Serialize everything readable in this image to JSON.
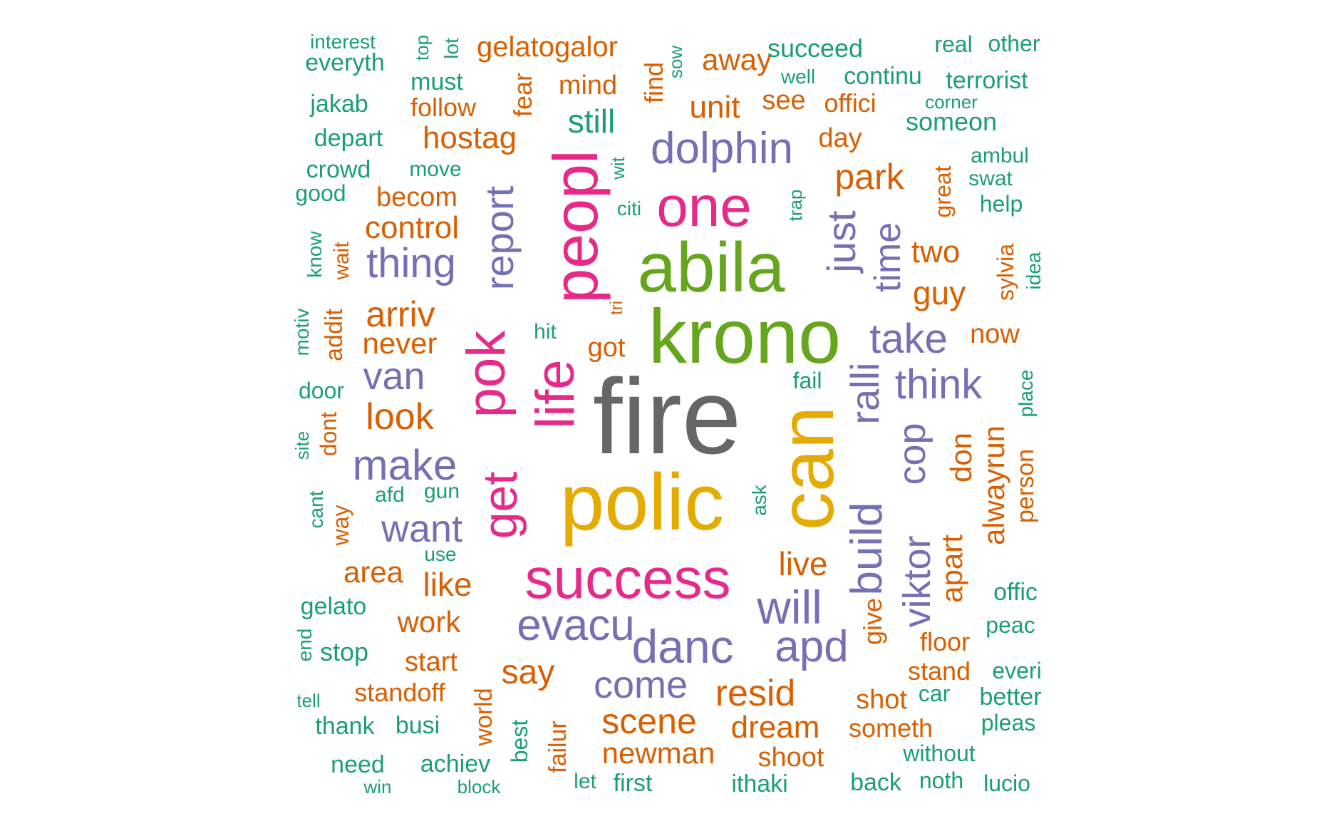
{
  "colors": {
    "teal": "#1b9e77",
    "orange": "#d95f02",
    "purple": "#7570b3",
    "pink": "#e7298a",
    "green": "#66a61e",
    "gold": "#e6ab02",
    "gray": "#666666"
  },
  "words": [
    {
      "text": "fire",
      "color": "gray",
      "weight": 10
    },
    {
      "text": "polic",
      "color": "gold",
      "weight": 8
    },
    {
      "text": "can",
      "color": "gold",
      "weight": 8
    },
    {
      "text": "krono",
      "color": "green",
      "weight": 8
    },
    {
      "text": "abila",
      "color": "green",
      "weight": 7
    },
    {
      "text": "peopl",
      "color": "pink",
      "weight": 6
    },
    {
      "text": "life",
      "color": "pink",
      "weight": 6
    },
    {
      "text": "pok",
      "color": "pink",
      "weight": 6
    },
    {
      "text": "success",
      "color": "pink",
      "weight": 6
    },
    {
      "text": "one",
      "color": "pink",
      "weight": 6
    },
    {
      "text": "get",
      "color": "pink",
      "weight": 5
    },
    {
      "text": "dolphin",
      "color": "purple",
      "weight": 5
    },
    {
      "text": "report",
      "color": "purple",
      "weight": 5
    },
    {
      "text": "danc",
      "color": "purple",
      "weight": 5
    },
    {
      "text": "build",
      "color": "purple",
      "weight": 5
    },
    {
      "text": "evacu",
      "color": "purple",
      "weight": 5
    },
    {
      "text": "apd",
      "color": "purple",
      "weight": 5
    },
    {
      "text": "will",
      "color": "purple",
      "weight": 5
    },
    {
      "text": "make",
      "color": "purple",
      "weight": 5
    },
    {
      "text": "ralli",
      "color": "purple",
      "weight": 4
    },
    {
      "text": "take",
      "color": "purple",
      "weight": 4
    },
    {
      "text": "think",
      "color": "purple",
      "weight": 4
    },
    {
      "text": "thing",
      "color": "purple",
      "weight": 4
    },
    {
      "text": "just",
      "color": "purple",
      "weight": 4
    },
    {
      "text": "cop",
      "color": "purple",
      "weight": 4
    },
    {
      "text": "come",
      "color": "purple",
      "weight": 4
    },
    {
      "text": "van",
      "color": "purple",
      "weight": 4
    },
    {
      "text": "want",
      "color": "purple",
      "weight": 4
    },
    {
      "text": "viktor",
      "color": "purple",
      "weight": 4
    },
    {
      "text": "time",
      "color": "purple",
      "weight": 4
    },
    {
      "text": "resid",
      "color": "orange",
      "weight": 4
    },
    {
      "text": "scene",
      "color": "orange",
      "weight": 4
    },
    {
      "text": "park",
      "color": "orange",
      "weight": 4
    },
    {
      "text": "arriv",
      "color": "orange",
      "weight": 4
    },
    {
      "text": "hostag",
      "color": "orange",
      "weight": 3
    },
    {
      "text": "look",
      "color": "orange",
      "weight": 4
    },
    {
      "text": "say",
      "color": "orange",
      "weight": 4
    },
    {
      "text": "like",
      "color": "orange",
      "weight": 3
    },
    {
      "text": "live",
      "color": "orange",
      "weight": 3
    },
    {
      "text": "two",
      "color": "orange",
      "weight": 3
    },
    {
      "text": "guy",
      "color": "orange",
      "weight": 3
    },
    {
      "text": "unit",
      "color": "orange",
      "weight": 3
    },
    {
      "text": "dream",
      "color": "orange",
      "weight": 3
    },
    {
      "text": "control",
      "color": "orange",
      "weight": 3
    },
    {
      "text": "gelatogalor",
      "color": "orange",
      "weight": 3
    },
    {
      "text": "newman",
      "color": "orange",
      "weight": 3
    },
    {
      "text": "away",
      "color": "orange",
      "weight": 3
    },
    {
      "text": "don",
      "color": "orange",
      "weight": 3
    },
    {
      "text": "apart",
      "color": "orange",
      "weight": 3
    },
    {
      "text": "alwayrun",
      "color": "orange",
      "weight": 3
    },
    {
      "text": "never",
      "color": "orange",
      "weight": 3
    },
    {
      "text": "work",
      "color": "orange",
      "weight": 3
    },
    {
      "text": "area",
      "color": "orange",
      "weight": 3
    },
    {
      "text": "standoff",
      "color": "orange",
      "weight": 2
    },
    {
      "text": "start",
      "color": "orange",
      "weight": 2
    },
    {
      "text": "mind",
      "color": "orange",
      "weight": 2
    },
    {
      "text": "becom",
      "color": "orange",
      "weight": 2
    },
    {
      "text": "follow",
      "color": "orange",
      "weight": 2
    },
    {
      "text": "shoot",
      "color": "orange",
      "weight": 2
    },
    {
      "text": "shot",
      "color": "orange",
      "weight": 2
    },
    {
      "text": "someth",
      "color": "orange",
      "weight": 2
    },
    {
      "text": "floor",
      "color": "orange",
      "weight": 2
    },
    {
      "text": "stand",
      "color": "orange",
      "weight": 2
    },
    {
      "text": "give",
      "color": "orange",
      "weight": 2
    },
    {
      "text": "day",
      "color": "orange",
      "weight": 2
    },
    {
      "text": "see",
      "color": "orange",
      "weight": 2
    },
    {
      "text": "offici",
      "color": "orange",
      "weight": 2
    },
    {
      "text": "got",
      "color": "orange",
      "weight": 2
    },
    {
      "text": "now",
      "color": "orange",
      "weight": 2
    },
    {
      "text": "find",
      "color": "orange",
      "weight": 2
    },
    {
      "text": "fear",
      "color": "orange",
      "weight": 2
    },
    {
      "text": "great",
      "color": "orange",
      "weight": 2
    },
    {
      "text": "sylvia",
      "color": "orange",
      "weight": 2
    },
    {
      "text": "person",
      "color": "orange",
      "weight": 2
    },
    {
      "text": "failur",
      "color": "orange",
      "weight": 2
    },
    {
      "text": "world",
      "color": "orange",
      "weight": 2
    },
    {
      "text": "way",
      "color": "orange",
      "weight": 2
    },
    {
      "text": "dont",
      "color": "orange",
      "weight": 2
    },
    {
      "text": "addit",
      "color": "orange",
      "weight": 2
    },
    {
      "text": "wait",
      "color": "orange",
      "weight": 2
    },
    {
      "text": "tri",
      "color": "orange",
      "weight": 1
    },
    {
      "text": "still",
      "color": "teal",
      "weight": 3
    },
    {
      "text": "succeed",
      "color": "teal",
      "weight": 2
    },
    {
      "text": "continu",
      "color": "teal",
      "weight": 2
    },
    {
      "text": "terrorist",
      "color": "teal",
      "weight": 2
    },
    {
      "text": "someon",
      "color": "teal",
      "weight": 2
    },
    {
      "text": "everyth",
      "color": "teal",
      "weight": 2
    },
    {
      "text": "must",
      "color": "teal",
      "weight": 2
    },
    {
      "text": "jakab",
      "color": "teal",
      "weight": 2
    },
    {
      "text": "depart",
      "color": "teal",
      "weight": 2
    },
    {
      "text": "crowd",
      "color": "teal",
      "weight": 2
    },
    {
      "text": "good",
      "color": "teal",
      "weight": 2
    },
    {
      "text": "move",
      "color": "teal",
      "weight": 1
    },
    {
      "text": "interest",
      "color": "teal",
      "weight": 1
    },
    {
      "text": "real",
      "color": "teal",
      "weight": 1
    },
    {
      "text": "other",
      "color": "teal",
      "weight": 1
    },
    {
      "text": "well",
      "color": "teal",
      "weight": 1
    },
    {
      "text": "corner",
      "color": "teal",
      "weight": 1
    },
    {
      "text": "ambul",
      "color": "teal",
      "weight": 1
    },
    {
      "text": "swat",
      "color": "teal",
      "weight": 1
    },
    {
      "text": "help",
      "color": "teal",
      "weight": 1
    },
    {
      "text": "citi",
      "color": "teal",
      "weight": 1
    },
    {
      "text": "hit",
      "color": "teal",
      "weight": 1
    },
    {
      "text": "fail",
      "color": "teal",
      "weight": 1
    },
    {
      "text": "door",
      "color": "teal",
      "weight": 1
    },
    {
      "text": "afd",
      "color": "teal",
      "weight": 1
    },
    {
      "text": "gun",
      "color": "teal",
      "weight": 1
    },
    {
      "text": "use",
      "color": "teal",
      "weight": 1
    },
    {
      "text": "ask",
      "color": "teal",
      "weight": 1
    },
    {
      "text": "gelato",
      "color": "teal",
      "weight": 2
    },
    {
      "text": "stop",
      "color": "teal",
      "weight": 2
    },
    {
      "text": "offic",
      "color": "teal",
      "weight": 2
    },
    {
      "text": "peac",
      "color": "teal",
      "weight": 2
    },
    {
      "text": "everi",
      "color": "teal",
      "weight": 2
    },
    {
      "text": "better",
      "color": "teal",
      "weight": 2
    },
    {
      "text": "car",
      "color": "teal",
      "weight": 2
    },
    {
      "text": "pleas",
      "color": "teal",
      "weight": 2
    },
    {
      "text": "without",
      "color": "teal",
      "weight": 2
    },
    {
      "text": "noth",
      "color": "teal",
      "weight": 2
    },
    {
      "text": "back",
      "color": "teal",
      "weight": 2
    },
    {
      "text": "lucio",
      "color": "teal",
      "weight": 2
    },
    {
      "text": "ithaki",
      "color": "teal",
      "weight": 2
    },
    {
      "text": "first",
      "color": "teal",
      "weight": 2
    },
    {
      "text": "let",
      "color": "teal",
      "weight": 1
    },
    {
      "text": "thank",
      "color": "teal",
      "weight": 2
    },
    {
      "text": "busi",
      "color": "teal",
      "weight": 2
    },
    {
      "text": "need",
      "color": "teal",
      "weight": 2
    },
    {
      "text": "achiev",
      "color": "teal",
      "weight": 2
    },
    {
      "text": "tell",
      "color": "teal",
      "weight": 1
    },
    {
      "text": "win",
      "color": "teal",
      "weight": 1
    },
    {
      "text": "block",
      "color": "teal",
      "weight": 1
    },
    {
      "text": "best",
      "color": "teal",
      "weight": 2
    },
    {
      "text": "end",
      "color": "teal",
      "weight": 1
    },
    {
      "text": "cant",
      "color": "teal",
      "weight": 1
    },
    {
      "text": "site",
      "color": "teal",
      "weight": 1
    },
    {
      "text": "motiv",
      "color": "teal",
      "weight": 1
    },
    {
      "text": "know",
      "color": "teal",
      "weight": 1
    },
    {
      "text": "top",
      "color": "teal",
      "weight": 1
    },
    {
      "text": "lot",
      "color": "teal",
      "weight": 1
    },
    {
      "text": "sow",
      "color": "teal",
      "weight": 1
    },
    {
      "text": "wit",
      "color": "teal",
      "weight": 1
    },
    {
      "text": "trap",
      "color": "teal",
      "weight": 1
    },
    {
      "text": "idea",
      "color": "teal",
      "weight": 1
    },
    {
      "text": "place",
      "color": "teal",
      "weight": 1
    }
  ]
}
